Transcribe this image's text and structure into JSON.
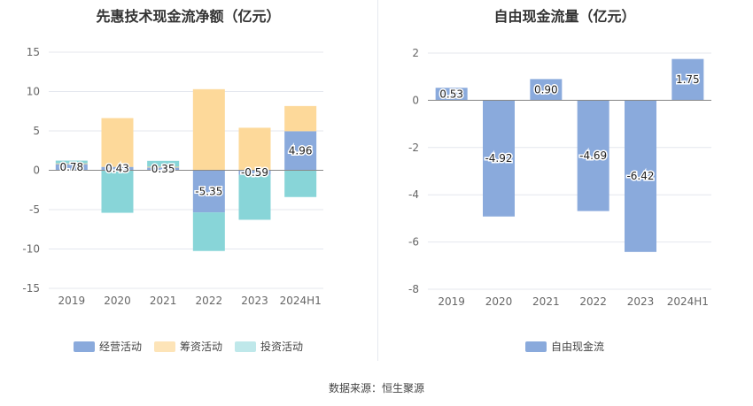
{
  "chart_data": [
    {
      "type": "bar",
      "stacked": true,
      "title": "先惠技术现金流净额（亿元）",
      "categories": [
        "2019",
        "2020",
        "2021",
        "2022",
        "2023",
        "2024H1"
      ],
      "ylim": [
        -15,
        15
      ],
      "yticks": [
        15,
        10,
        5,
        0,
        -5,
        -10,
        -15
      ],
      "grid": true,
      "legend_position": "bottom",
      "series": [
        {
          "name": "经营活动",
          "color": "#8aaadc",
          "values": [
            0.78,
            0.43,
            0.35,
            -5.35,
            -0.59,
            4.96
          ],
          "labels": [
            "0.78",
            "0.43",
            "0.35",
            "-5.35",
            "-0.59",
            "4.96"
          ]
        },
        {
          "name": "筹资活动",
          "color": "#fdd99a",
          "values": [
            0.1,
            6.2,
            0.1,
            10.3,
            5.4,
            3.2
          ]
        },
        {
          "name": "投资活动",
          "color": "#88d5d8",
          "values": [
            0.35,
            -5.4,
            0.75,
            -4.9,
            -5.7,
            -3.4
          ]
        }
      ]
    },
    {
      "type": "bar",
      "title": "自由现金流量（亿元）",
      "categories": [
        "2019",
        "2020",
        "2021",
        "2022",
        "2023",
        "2024H1"
      ],
      "ylim": [
        -8,
        2
      ],
      "yticks": [
        2,
        0,
        -2,
        -4,
        -6,
        -8
      ],
      "grid": true,
      "legend_position": "bottom",
      "series": [
        {
          "name": "自由现金流",
          "color": "#8aaadc",
          "values": [
            0.53,
            -4.92,
            0.9,
            -4.69,
            -6.42,
            1.75
          ],
          "labels": [
            "0.53",
            "-4.92",
            "0.90",
            "-4.69",
            "-6.42",
            "1.75"
          ]
        }
      ]
    }
  ],
  "footer": "数据来源：恒生聚源"
}
